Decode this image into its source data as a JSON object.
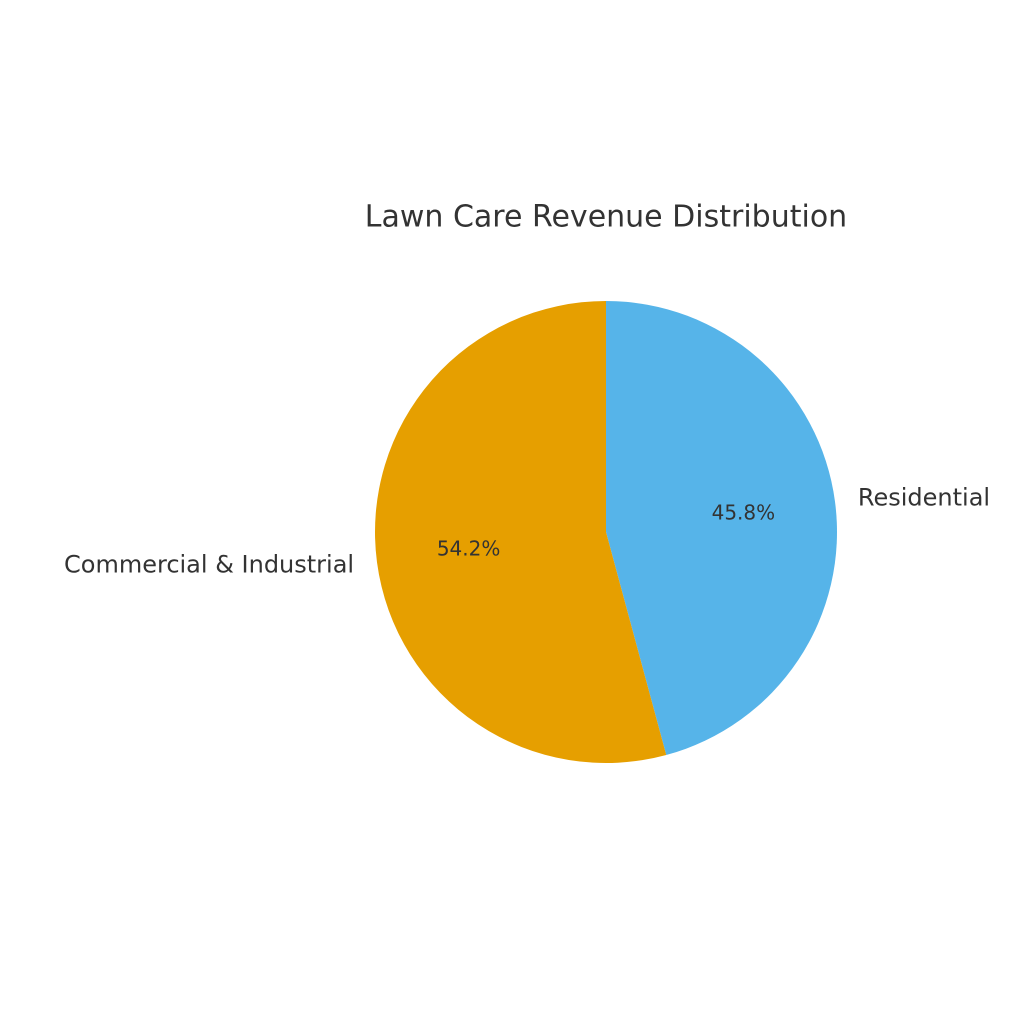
{
  "chart_data": {
    "type": "pie",
    "title": "Lawn Care Revenue Distribution",
    "categories": [
      "Residential",
      "Commercial & Industrial"
    ],
    "values": [
      45.8,
      54.2
    ],
    "value_labels": [
      "45.8%",
      "54.2%"
    ],
    "colors": [
      "#56B4E9",
      "#E69F00"
    ]
  }
}
